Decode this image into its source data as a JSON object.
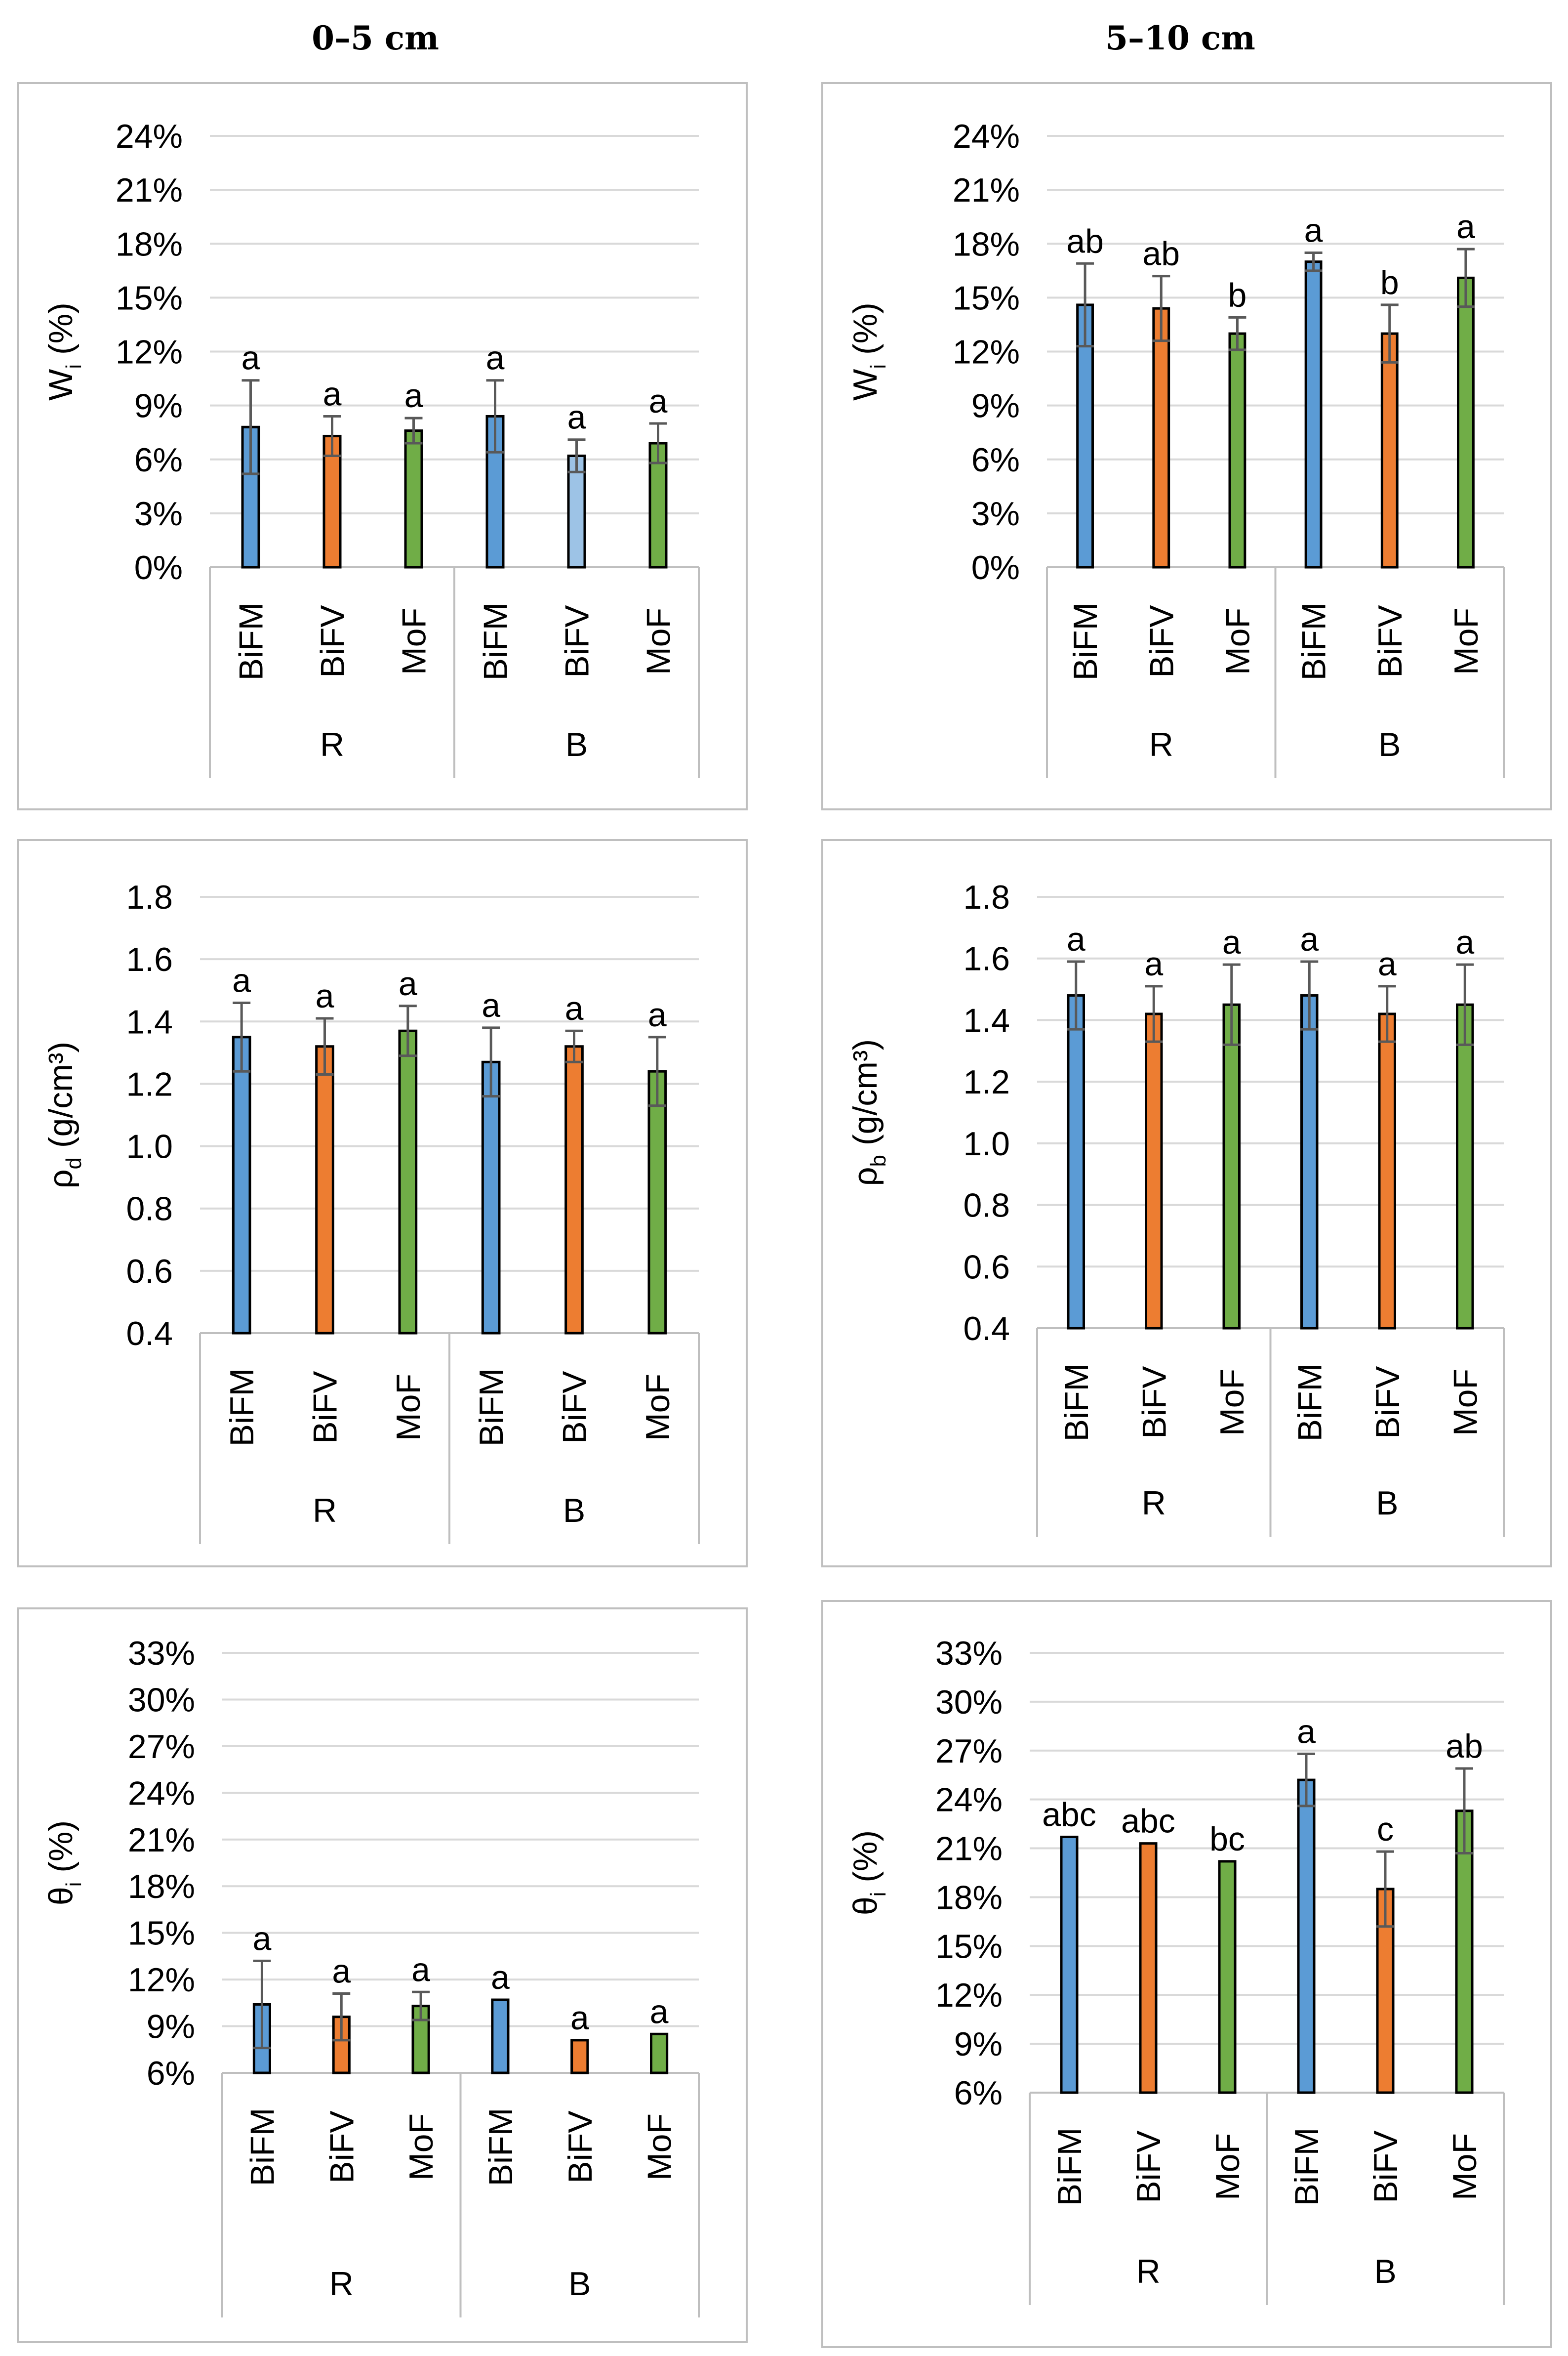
{
  "column_titles": [
    "0–5 cm",
    "5–10 cm"
  ],
  "colors": {
    "BiFM": "#5b9bd5",
    "BiFV": "#ed7d31",
    "MoF": "#70ad47",
    "BiFV_light": "#9dc3e6",
    "grid": "#d9d9d9",
    "frame": "#bfbfbf",
    "error": "#595959"
  },
  "chart_data": [
    {
      "type": "bar",
      "ylabel": "Wi (%)",
      "ylabel_main": "W",
      "ylabel_sub": "i",
      "ylabel_tail": " (%)",
      "yticks": [
        "0%",
        "3%",
        "6%",
        "9%",
        "12%",
        "15%",
        "18%",
        "21%",
        "24%"
      ],
      "ylim": [
        0,
        24
      ],
      "groups": [
        "R",
        "B"
      ],
      "categories": [
        "BiFM",
        "BiFV",
        "MoF",
        "BiFM",
        "BiFV",
        "MoF"
      ],
      "values": [
        7.8,
        7.3,
        7.6,
        8.4,
        6.2,
        6.9
      ],
      "errors": [
        2.6,
        1.1,
        0.7,
        2.0,
        0.9,
        1.1
      ],
      "letters": [
        "a",
        "a",
        "a",
        "a",
        "a",
        "a"
      ],
      "colors": [
        "BiFM",
        "BiFV",
        "MoF",
        "BiFM",
        "BiFV_light",
        "MoF"
      ]
    },
    {
      "type": "bar",
      "ylabel": "Wi (%)",
      "ylabel_main": "W",
      "ylabel_sub": "i",
      "ylabel_tail": " (%)",
      "yticks": [
        "0%",
        "3%",
        "6%",
        "9%",
        "12%",
        "15%",
        "18%",
        "21%",
        "24%"
      ],
      "ylim": [
        0,
        24
      ],
      "groups": [
        "R",
        "B"
      ],
      "categories": [
        "BiFM",
        "BiFV",
        "MoF",
        "BiFM",
        "BiFV",
        "MoF"
      ],
      "values": [
        14.6,
        14.4,
        13.0,
        17.0,
        13.0,
        16.1
      ],
      "errors": [
        2.3,
        1.8,
        0.9,
        0.5,
        1.6,
        1.6
      ],
      "letters": [
        "ab",
        "ab",
        "b",
        "a",
        "b",
        "a"
      ],
      "colors": [
        "BiFM",
        "BiFV",
        "MoF",
        "BiFM",
        "BiFV",
        "MoF"
      ]
    },
    {
      "type": "bar",
      "ylabel": "ρd (g/cm³)",
      "ylabel_main": "ρ",
      "ylabel_sub": "d",
      "ylabel_tail": " (g/cm³)",
      "yticks": [
        "0.4",
        "0.6",
        "0.8",
        "1.0",
        "1.2",
        "1.4",
        "1.6",
        "1.8"
      ],
      "ylim": [
        0.4,
        1.8
      ],
      "groups": [
        "R",
        "B"
      ],
      "categories": [
        "BiFM",
        "BiFV",
        "MoF",
        "BiFM",
        "BiFV",
        "MoF"
      ],
      "values": [
        1.35,
        1.32,
        1.37,
        1.27,
        1.32,
        1.24
      ],
      "errors": [
        0.11,
        0.09,
        0.08,
        0.11,
        0.05,
        0.11
      ],
      "letters": [
        "a",
        "a",
        "a",
        "a",
        "a",
        "a"
      ],
      "colors": [
        "BiFM",
        "BiFV",
        "MoF",
        "BiFM",
        "BiFV",
        "MoF"
      ]
    },
    {
      "type": "bar",
      "ylabel": "ρb (g/cm³)",
      "ylabel_main": "ρ",
      "ylabel_sub": "b",
      "ylabel_tail": " (g/cm³)",
      "yticks": [
        "0.4",
        "0.6",
        "0.8",
        "1.0",
        "1.2",
        "1.4",
        "1.6",
        "1.8"
      ],
      "ylim": [
        0.4,
        1.8
      ],
      "groups": [
        "R",
        "B"
      ],
      "categories": [
        "BiFM",
        "BiFV",
        "MoF",
        "BiFM",
        "BiFV",
        "MoF"
      ],
      "values": [
        1.48,
        1.42,
        1.45,
        1.48,
        1.42,
        1.45
      ],
      "errors": [
        0.11,
        0.09,
        0.13,
        0.11,
        0.09,
        0.13
      ],
      "letters": [
        "a",
        "a",
        "a",
        "a",
        "a",
        "a"
      ],
      "colors": [
        "BiFM",
        "BiFV",
        "MoF",
        "BiFM",
        "BiFV",
        "MoF"
      ]
    },
    {
      "type": "bar",
      "ylabel": "θi (%)",
      "ylabel_main": "θ",
      "ylabel_sub": "i",
      "ylabel_tail": " (%)",
      "yticks": [
        "6%",
        "9%",
        "12%",
        "15%",
        "18%",
        "21%",
        "24%",
        "27%",
        "30%",
        "33%"
      ],
      "ylim": [
        6,
        33
      ],
      "groups": [
        "R",
        "B"
      ],
      "categories": [
        "BiFM",
        "BiFV",
        "MoF",
        "BiFM",
        "BiFV",
        "MoF"
      ],
      "values": [
        10.4,
        9.6,
        10.3,
        10.7,
        8.1,
        8.5
      ],
      "errors": [
        2.8,
        1.5,
        0.9,
        0.0,
        0.0,
        0.0
      ],
      "letters": [
        "a",
        "a",
        "a",
        "a",
        "a",
        "a"
      ],
      "colors": [
        "BiFM",
        "BiFV",
        "MoF",
        "BiFM",
        "BiFV",
        "MoF"
      ]
    },
    {
      "type": "bar",
      "ylabel": "θi (%)",
      "ylabel_main": "θ",
      "ylabel_sub": "i",
      "ylabel_tail": " (%)",
      "yticks": [
        "6%",
        "9%",
        "12%",
        "15%",
        "18%",
        "21%",
        "24%",
        "27%",
        "30%",
        "33%"
      ],
      "ylim": [
        6,
        33
      ],
      "groups": [
        "R",
        "B"
      ],
      "categories": [
        "BiFM",
        "BiFV",
        "MoF",
        "BiFM",
        "BiFV",
        "MoF"
      ],
      "values": [
        21.7,
        21.3,
        20.2,
        25.2,
        18.5,
        23.3
      ],
      "errors": [
        0.0,
        0.0,
        0.0,
        1.6,
        2.3,
        2.6
      ],
      "letters": [
        "abc",
        "abc",
        "bc",
        "a",
        "c",
        "ab"
      ],
      "colors": [
        "BiFM",
        "BiFV",
        "MoF",
        "BiFM",
        "BiFV",
        "MoF"
      ]
    }
  ]
}
